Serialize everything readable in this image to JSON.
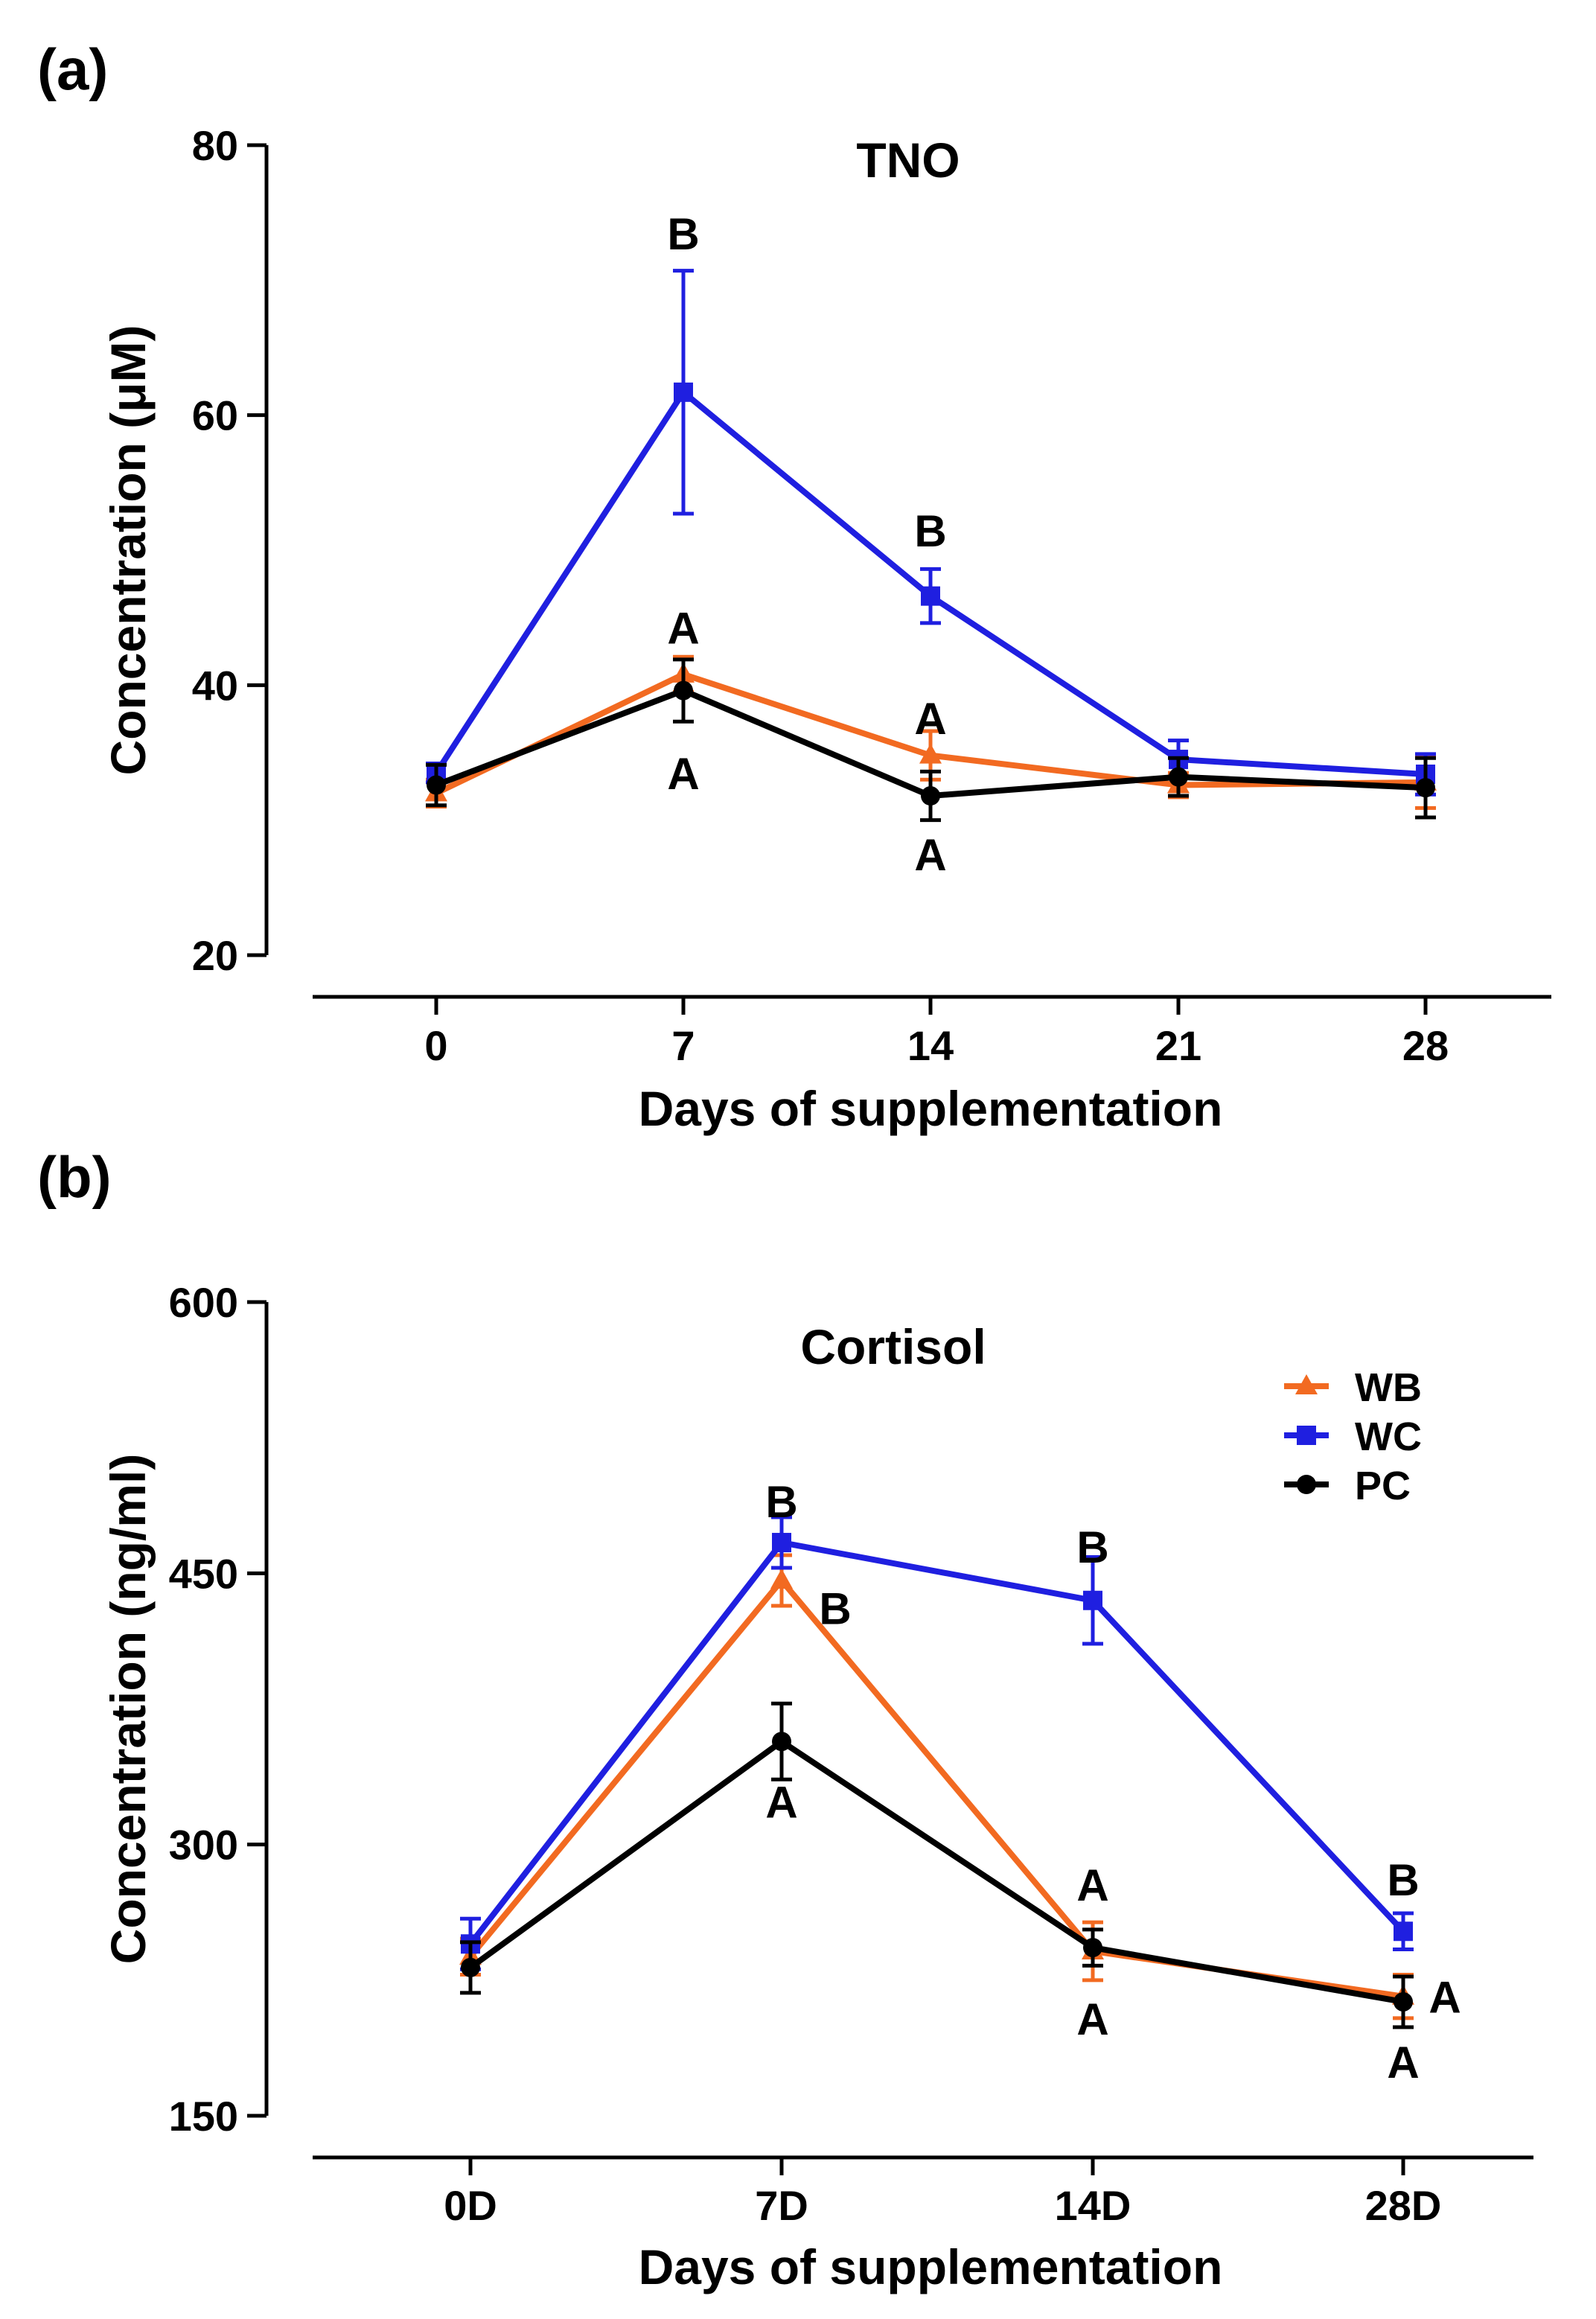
{
  "chart_data": [
    {
      "panel_label": "(a)",
      "type": "line",
      "title": "TNO",
      "xlabel": "Days of supplementation",
      "ylabel": "Concentration (μM)",
      "categories": [
        "0",
        "7",
        "14",
        "21",
        "28"
      ],
      "yticks": [
        "20",
        "40",
        "60",
        "80"
      ],
      "ylim": [
        20,
        80
      ],
      "legend": null,
      "series": [
        {
          "name": "WB",
          "color": "#f26a21",
          "marker": "triangle",
          "values": [
            32.0,
            40.8,
            34.8,
            32.6,
            32.8
          ],
          "errors": [
            1.0,
            1.3,
            1.8,
            0.9,
            1.9
          ]
        },
        {
          "name": "WC",
          "color": "#1f1fe0",
          "marker": "square",
          "values": [
            33.5,
            61.7,
            46.6,
            34.5,
            33.4
          ],
          "errors": [
            0.7,
            9.0,
            2.0,
            1.4,
            1.5
          ]
        },
        {
          "name": "PC",
          "color": "#000000",
          "marker": "circle",
          "values": [
            32.6,
            39.6,
            31.8,
            33.2,
            32.4
          ],
          "errors": [
            1.5,
            2.3,
            1.8,
            1.4,
            2.2
          ]
        }
      ],
      "annotations": [
        {
          "text": "B",
          "cat": 1,
          "y": 73.5,
          "dx": 0
        },
        {
          "text": "A",
          "cat": 1,
          "y": 44.3,
          "dx": 0
        },
        {
          "text": "A",
          "cat": 1,
          "y": 33.5,
          "dx": 0
        },
        {
          "text": "B",
          "cat": 2,
          "y": 51.5,
          "dx": 0
        },
        {
          "text": "A",
          "cat": 2,
          "y": 37.6,
          "dx": 0
        },
        {
          "text": "A",
          "cat": 2,
          "y": 27.5,
          "dx": 0
        }
      ]
    },
    {
      "panel_label": "(b)",
      "type": "line",
      "title": "Cortisol",
      "xlabel": "Days of supplementation",
      "ylabel": "Concentration (ng/ml)",
      "categories": [
        "0D",
        "7D",
        "14D",
        "28D"
      ],
      "yticks": [
        "150",
        "300",
        "450",
        "600"
      ],
      "ylim": [
        150,
        600
      ],
      "legend": "top-right",
      "series": [
        {
          "name": "WB",
          "color": "#f26a21",
          "marker": "triangle",
          "values": [
            238,
            446,
            241,
            216
          ],
          "errors": [
            10,
            14,
            16,
            12
          ]
        },
        {
          "name": "WC",
          "color": "#1f1fe0",
          "marker": "square",
          "values": [
            245,
            467,
            435,
            252
          ],
          "errors": [
            14,
            14,
            24,
            10
          ]
        },
        {
          "name": "PC",
          "color": "#000000",
          "marker": "circle",
          "values": [
            232,
            357,
            243,
            213
          ],
          "errors": [
            14,
            21,
            10,
            14
          ]
        }
      ],
      "annotations": [
        {
          "text": "B",
          "cat": 1,
          "y": 490,
          "dx": 0
        },
        {
          "text": "B",
          "cat": 1,
          "y": 431,
          "dx": 72
        },
        {
          "text": "A",
          "cat": 1,
          "y": 324,
          "dx": 0
        },
        {
          "text": "B",
          "cat": 2,
          "y": 465,
          "dx": 0
        },
        {
          "text": "A",
          "cat": 2,
          "y": 278,
          "dx": 0
        },
        {
          "text": "A",
          "cat": 2,
          "y": 204,
          "dx": 0
        },
        {
          "text": "B",
          "cat": 3,
          "y": 281,
          "dx": 0
        },
        {
          "text": "A",
          "cat": 3,
          "y": 216,
          "dx": 56
        },
        {
          "text": "A",
          "cat": 3,
          "y": 180,
          "dx": 0
        }
      ]
    }
  ]
}
